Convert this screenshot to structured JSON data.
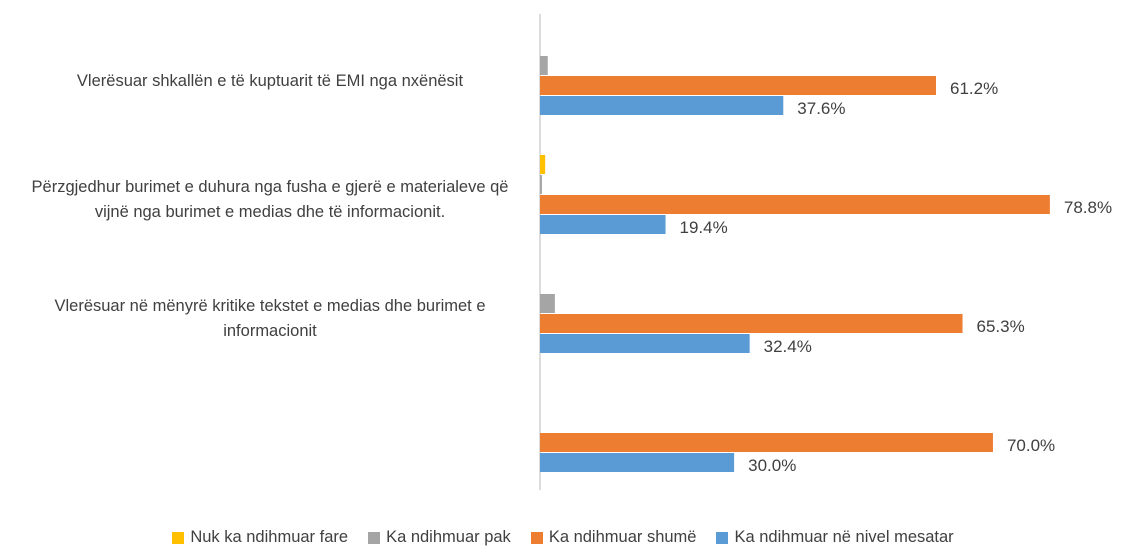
{
  "chart_data": {
    "type": "bar",
    "orientation": "horizontal",
    "categories": [
      "Vlerësuar shkallën e të kuptuarit të EMI nga nxënësit",
      "Përzgjedhur burimet e duhura nga fusha e gjerë e materialeve që vijnë nga burimet e medias dhe të informacionit.",
      "Vlerësuar në mënyrë kritike tekstet e medias dhe burimet e informacionit",
      null
    ],
    "series": [
      {
        "name": "Nuk ka ndihmuar fare",
        "color": "#ffc000",
        "values": [
          0,
          0.8,
          0,
          0
        ]
      },
      {
        "name": "Ka ndihmuar pak",
        "color": "#a5a5a5",
        "values": [
          1.2,
          0.3,
          2.3,
          0
        ]
      },
      {
        "name": "Ka ndihmuar shumë",
        "color": "#ed7d31",
        "values": [
          61.2,
          78.8,
          65.3,
          70.0
        ],
        "value_labels": [
          "61.2%",
          "78.8%",
          "65.3%",
          "70.0%"
        ]
      },
      {
        "name": "Ka ndihmuar në nivel mesatar",
        "color": "#5b9bd5",
        "values": [
          37.6,
          19.4,
          32.4,
          30.0
        ],
        "value_labels": [
          "37.6%",
          "19.4%",
          "32.4%",
          "30.0%"
        ]
      }
    ],
    "xlim": [
      0,
      85
    ],
    "legend": "bottom"
  }
}
